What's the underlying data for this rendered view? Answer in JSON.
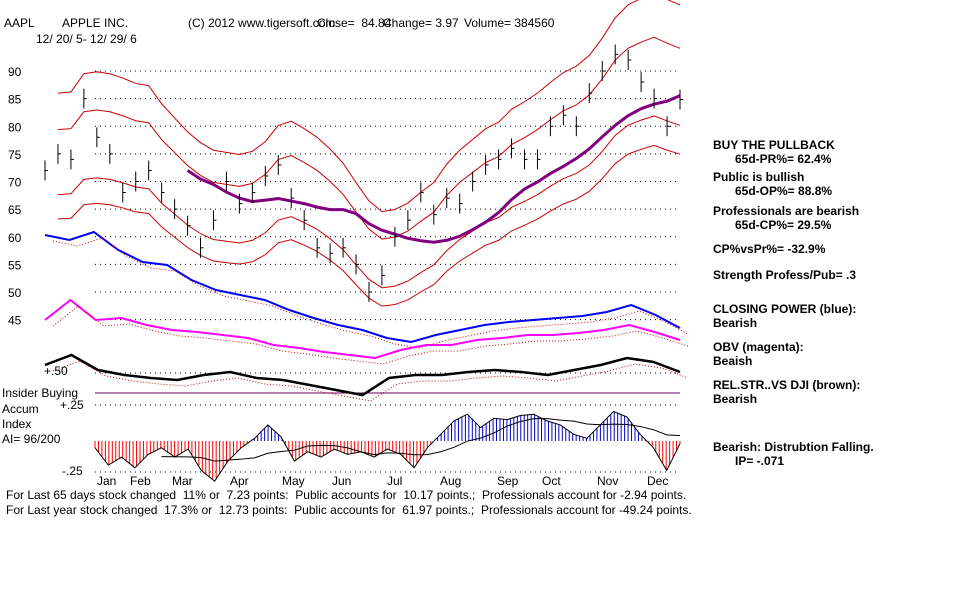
{
  "header": {
    "ticker": "AAPL",
    "name": "APPLE INC.",
    "dates": "12/ 20/ 5- 12/ 29/ 6",
    "copyright": "(C) 2012 www.tigersoft.com",
    "close": "Close=  84.84",
    "change": "Change= 3.97",
    "volume": "Volume= 384560"
  },
  "right_panel": [
    {
      "title": "BUY THE PULLBACK",
      "value": "65d-PR%= 62.4%"
    },
    {
      "title": "Public is bullish",
      "value": "65d-OP%= 88.8%"
    },
    {
      "title": "Professionals are bearish",
      "value": "65d-CP%= 29.5%"
    },
    {
      "title": "CP%vsPr%= -32.9%"
    },
    {
      "title": "Strength Profess/Pub= .3"
    },
    {
      "title": "CLOSING POWER (blue):",
      "value": "Bearish"
    },
    {
      "title": "OBV (magenta):",
      "value": "Beaish"
    },
    {
      "title": "REL.STR..VS DJI (brown):",
      "value": "Bearish"
    },
    {
      "title": "Bearish: Distrubtion Falling.",
      "value": "IP= -.071"
    }
  ],
  "left_labels": {
    "insider": "Insider Buying",
    "accum": "Accum",
    "index": "Index",
    "ai": "AI= 96/200",
    "plus": "+.25",
    "minus": "-.25",
    "rs": "+.50"
  },
  "footer": {
    "line1": "For Last 65 days stock changed  11% or  7.23 points:  Public accounts for  10.17 points.;  Professionals account for -2.94 points.",
    "line2": "For Last year stock changed  17.3% or  12.73 points:  Public accounts for  61.97 points.;  Professionals account for -49.24 points."
  },
  "colors": {
    "price": "#000000",
    "bands": "#cc0000",
    "ma": "#800080",
    "cp": "#0000ff",
    "obv": "#ff00ff",
    "rs": "#000000",
    "accum_pos": "#0000cc",
    "accum_neg": "#ff0000"
  },
  "chart_data": {
    "type": "line",
    "title": "AAPL APPLE INC.",
    "y_ticks": [
      90,
      85,
      80,
      75,
      70,
      65,
      60,
      55,
      50,
      45
    ],
    "ylim": [
      45,
      95
    ],
    "months": [
      "Jan",
      "Feb",
      "Mar",
      "Apr",
      "May",
      "Jun",
      "Jul",
      "Aug",
      "Sep",
      "Oct",
      "Nov",
      "Dec"
    ],
    "price_weekly": [
      72,
      75,
      74,
      85,
      78,
      75,
      68,
      70,
      72,
      68,
      65,
      62,
      58,
      63,
      70,
      66,
      68,
      71,
      73,
      67,
      63,
      58,
      57,
      58,
      55,
      50,
      53,
      60,
      63,
      68,
      64,
      67,
      66,
      70,
      73,
      74,
      76,
      74,
      74,
      80,
      82,
      80,
      86,
      90,
      93,
      92,
      88,
      85,
      80,
      84.84
    ],
    "closing_power": [
      110,
      105,
      113,
      95,
      83,
      80,
      65,
      55,
      50,
      45,
      35,
      27,
      20,
      15,
      7,
      3,
      10,
      15,
      20,
      23,
      25,
      27,
      29,
      33,
      40,
      30,
      17
    ],
    "obv": [
      55,
      75,
      55,
      57,
      50,
      45,
      43,
      40,
      37,
      30,
      27,
      23,
      20,
      17,
      25,
      30,
      30,
      35,
      37,
      40,
      40,
      42,
      45,
      50,
      43,
      35
    ],
    "rel_str": [
      40,
      50,
      35,
      30,
      27,
      25,
      30,
      33,
      27,
      25,
      20,
      15,
      10,
      27,
      30,
      30,
      33,
      35,
      33,
      30,
      35,
      40,
      47,
      43,
      33
    ],
    "accum_index": [
      -0.05,
      -0.18,
      -0.12,
      -0.2,
      -0.1,
      -0.05,
      -0.12,
      -0.06,
      -0.22,
      -0.3,
      -0.15,
      -0.05,
      0.02,
      0.12,
      0.03,
      -0.15,
      -0.08,
      -0.12,
      -0.06,
      -0.1,
      -0.08,
      -0.12,
      -0.06,
      -0.1,
      -0.2,
      -0.05,
      0.05,
      0.15,
      0.2,
      0.1,
      0.17,
      0.16,
      0.19,
      0.2,
      0.15,
      0.12,
      0.05,
      0.02,
      0.12,
      0.22,
      0.18,
      0.05,
      -0.05,
      -0.22,
      -0.02
    ]
  }
}
